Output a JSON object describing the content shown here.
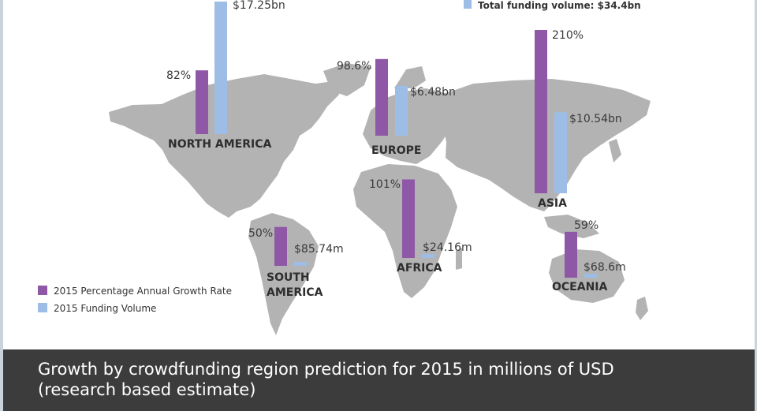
{
  "caption": "Growth by crowdfunding region prediction for 2015 in millions of USD (research based estimate)",
  "chart_data": {
    "type": "bar",
    "categories": [
      "NORTH AMERICA",
      "EUROPE",
      "ASIA",
      "SOUTH AMERICA",
      "AFRICA",
      "OCEANIA"
    ],
    "category_line2": [
      "",
      "",
      "",
      "AMERICA",
      "",
      ""
    ],
    "series": [
      {
        "name": "2015 Percentage Annual Growth Rate",
        "values": [
          82,
          98.6,
          210,
          50,
          101,
          59
        ],
        "labels": [
          "82%",
          "98.6%",
          "210%",
          "50%",
          "101%",
          "59%"
        ],
        "color": "#8e58a6"
      },
      {
        "name": "2015 Funding Volume",
        "values_usd_millions": [
          17250,
          6480,
          10540,
          85.74,
          24.16,
          68.6
        ],
        "labels": [
          "$17.25bn",
          "$6.48bn",
          "$10.54bn",
          "$85.74m",
          "$24.16m",
          "$68.6m"
        ],
        "color": "#9dbde6"
      }
    ],
    "total_label": "Total funding volume: $34.4bn",
    "legend": "bottom-left",
    "map_color": "#b3b3b3"
  }
}
